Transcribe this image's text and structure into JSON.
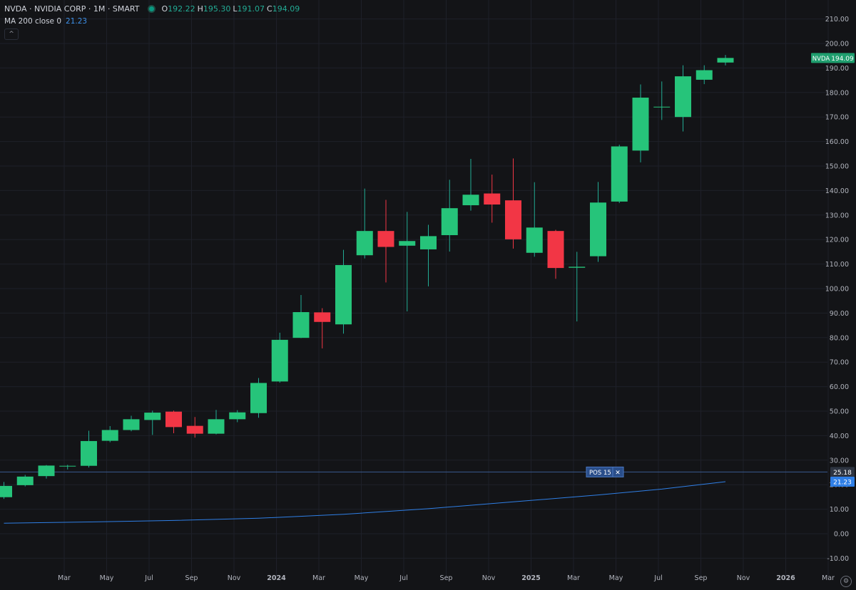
{
  "header": {
    "symbol": "NVDA · NVIDIA CORP · 1M · SMART",
    "o_label": "O",
    "o_value": "192.22",
    "h_label": "H",
    "h_value": "195.30",
    "l_label": "L",
    "l_value": "191.07",
    "c_label": "C",
    "c_value": "194.09"
  },
  "indicator": {
    "label": "MA 200 close 0",
    "value": "21.23"
  },
  "collapse_glyph": "^",
  "settings_glyph": "⚙",
  "colors": {
    "background": "#131417",
    "grid": "#1e2029",
    "up": "#22ab94",
    "up_fill": "#26c47a",
    "down": "#f23645",
    "ma": "#2f7fe6",
    "pos_line": "#3a5a90",
    "axis_text": "#b2b5be"
  },
  "chart_data": {
    "type": "candlestick",
    "symbol": "NVDA",
    "ylim": [
      -15,
      215
    ],
    "y_ticks": [
      "-10.00",
      "0.00",
      "10.00",
      "20.00",
      "30.00",
      "40.00",
      "50.00",
      "60.00",
      "70.00",
      "80.00",
      "90.00",
      "100.00",
      "110.00",
      "120.00",
      "130.00",
      "140.00",
      "150.00",
      "160.00",
      "170.00",
      "180.00",
      "190.00",
      "200.00",
      "210.00"
    ],
    "x_ticks": [
      "Mar",
      "May",
      "Jul",
      "Sep",
      "Nov",
      "2024",
      "Mar",
      "May",
      "Jul",
      "Sep",
      "Nov",
      "2025",
      "Mar",
      "May",
      "Jul",
      "Sep",
      "Nov",
      "2026",
      "Mar"
    ],
    "x_tick_index": [
      2,
      4,
      6,
      8,
      10,
      12,
      14,
      16,
      18,
      20,
      22,
      24,
      26,
      28,
      30,
      32,
      34,
      36,
      38
    ],
    "candles": [
      {
        "d": "2023-01",
        "o": 14.9,
        "h": 21.1,
        "l": 14.2,
        "c": 19.5
      },
      {
        "d": "2023-02",
        "o": 19.8,
        "h": 24.0,
        "l": 19.3,
        "c": 23.3
      },
      {
        "d": "2023-03",
        "o": 23.5,
        "h": 28.0,
        "l": 22.5,
        "c": 27.8
      },
      {
        "d": "2023-04",
        "o": 27.7,
        "h": 28.1,
        "l": 26.2,
        "c": 27.7
      },
      {
        "d": "2023-05",
        "o": 27.7,
        "h": 42.0,
        "l": 27.0,
        "c": 37.8
      },
      {
        "d": "2023-06",
        "o": 37.9,
        "h": 43.9,
        "l": 37.3,
        "c": 42.3
      },
      {
        "d": "2023-07",
        "o": 42.3,
        "h": 48.1,
        "l": 41.8,
        "c": 46.7
      },
      {
        "d": "2023-08",
        "o": 46.4,
        "h": 50.2,
        "l": 40.3,
        "c": 49.4
      },
      {
        "d": "2023-09",
        "o": 49.8,
        "h": 50.2,
        "l": 41.0,
        "c": 43.5
      },
      {
        "d": "2023-10",
        "o": 44.0,
        "h": 47.6,
        "l": 39.2,
        "c": 40.8
      },
      {
        "d": "2023-11",
        "o": 40.8,
        "h": 50.5,
        "l": 40.5,
        "c": 46.7
      },
      {
        "d": "2023-12",
        "o": 46.7,
        "h": 50.4,
        "l": 45.5,
        "c": 49.5
      },
      {
        "d": "2024-01",
        "o": 49.2,
        "h": 63.5,
        "l": 47.3,
        "c": 61.5
      },
      {
        "d": "2024-02",
        "o": 62.1,
        "h": 82.0,
        "l": 61.6,
        "c": 79.1
      },
      {
        "d": "2024-03",
        "o": 79.9,
        "h": 97.4,
        "l": 79.8,
        "c": 90.4
      },
      {
        "d": "2024-04",
        "o": 90.3,
        "h": 92.0,
        "l": 75.6,
        "c": 86.4
      },
      {
        "d": "2024-05",
        "o": 85.4,
        "h": 115.8,
        "l": 81.6,
        "c": 109.6
      },
      {
        "d": "2024-06",
        "o": 113.6,
        "h": 140.8,
        "l": 112.3,
        "c": 123.5
      },
      {
        "d": "2024-07",
        "o": 123.5,
        "h": 136.2,
        "l": 102.5,
        "c": 117.0
      },
      {
        "d": "2024-08",
        "o": 117.5,
        "h": 131.3,
        "l": 90.7,
        "c": 119.4
      },
      {
        "d": "2024-09",
        "o": 116.0,
        "h": 126.0,
        "l": 100.9,
        "c": 121.4
      },
      {
        "d": "2024-10",
        "o": 121.8,
        "h": 144.4,
        "l": 115.1,
        "c": 132.8
      },
      {
        "d": "2024-11",
        "o": 134.0,
        "h": 152.9,
        "l": 131.8,
        "c": 138.3
      },
      {
        "d": "2024-12",
        "o": 138.8,
        "h": 146.5,
        "l": 126.9,
        "c": 134.3
      },
      {
        "d": "2025-01",
        "o": 136.0,
        "h": 153.1,
        "l": 116.3,
        "c": 120.1
      },
      {
        "d": "2025-02",
        "o": 114.6,
        "h": 143.4,
        "l": 113.0,
        "c": 124.9
      },
      {
        "d": "2025-03",
        "o": 123.5,
        "h": 124.0,
        "l": 104.0,
        "c": 108.4
      },
      {
        "d": "2025-04",
        "o": 108.5,
        "h": 115.0,
        "l": 86.6,
        "c": 108.9
      },
      {
        "d": "2025-05",
        "o": 113.2,
        "h": 143.5,
        "l": 110.9,
        "c": 135.1
      },
      {
        "d": "2025-06",
        "o": 135.5,
        "h": 158.7,
        "l": 134.9,
        "c": 158.0
      },
      {
        "d": "2025-07",
        "o": 156.3,
        "h": 183.3,
        "l": 151.5,
        "c": 177.9
      },
      {
        "d": "2025-08",
        "o": 174.1,
        "h": 184.5,
        "l": 168.8,
        "c": 174.2
      },
      {
        "d": "2025-09",
        "o": 170.0,
        "h": 191.1,
        "l": 164.1,
        "c": 186.6
      },
      {
        "d": "2025-10",
        "o": 185.2,
        "h": 191.1,
        "l": 183.4,
        "c": 189.1
      },
      {
        "d": "2025-11",
        "o": 192.22,
        "h": 195.3,
        "l": 191.07,
        "c": 194.09
      }
    ],
    "ma200": {
      "name": "MA 200 close 0",
      "points": [
        {
          "i": 0,
          "v": 4.3
        },
        {
          "i": 4,
          "v": 4.8
        },
        {
          "i": 8,
          "v": 5.4
        },
        {
          "i": 12,
          "v": 6.3
        },
        {
          "i": 16,
          "v": 7.9
        },
        {
          "i": 20,
          "v": 10.2
        },
        {
          "i": 24,
          "v": 13.0
        },
        {
          "i": 28,
          "v": 15.8
        },
        {
          "i": 31,
          "v": 18.2
        },
        {
          "i": 34,
          "v": 21.23
        }
      ]
    },
    "position_line": {
      "value": 25.18,
      "label": "POS",
      "qty": "15",
      "close_glyph": "✕",
      "price_label": "25.18"
    },
    "last_price": {
      "symbol": "NVDA",
      "value": 194.09,
      "label": "194.09"
    },
    "ma_last": {
      "value": 21.23,
      "label": "21.23"
    },
    "grid": true
  }
}
